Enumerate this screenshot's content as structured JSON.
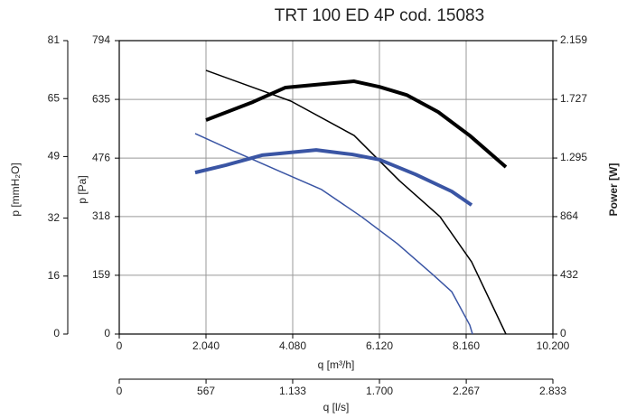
{
  "chart_data": {
    "type": "line",
    "title": "TRT 100 ED 4P cod. 15083",
    "xlabel": "q [m³/h]",
    "x2label": "q [l/s]",
    "ylabel": "p [Pa]",
    "y2label": "Power [W]",
    "y3label": "p [mmH₂O]",
    "xlim": [
      0,
      10200
    ],
    "xticks": [
      0,
      {
        "value": 2040,
        "label": "2.040"
      },
      {
        "value": 4080,
        "label": "4.080"
      },
      {
        "value": 6120,
        "label": "6.120"
      },
      {
        "value": 8160,
        "label": "8.160"
      },
      {
        "value": 10200,
        "label": "10.200"
      }
    ],
    "x2lim": [
      0,
      2833
    ],
    "x2ticks": [
      0,
      567,
      {
        "value": 1133,
        "label": "1.133"
      },
      {
        "value": 1700,
        "label": "1.700"
      },
      {
        "value": 2267,
        "label": "2.267"
      },
      {
        "value": 2833,
        "label": "2.833"
      }
    ],
    "ylim": [
      0,
      794
    ],
    "yticks": [
      0,
      159,
      318,
      476,
      635,
      794
    ],
    "y2lim": [
      0,
      2159
    ],
    "y2ticks": [
      0,
      432,
      864,
      {
        "value": 1295,
        "label": "1.295"
      },
      {
        "value": 1727,
        "label": "1.727"
      },
      {
        "value": 2159,
        "label": "2.159"
      }
    ],
    "y3lim": [
      0,
      81
    ],
    "y3ticks": [
      0,
      16,
      32,
      49,
      65,
      81
    ],
    "grid": true,
    "series": [
      {
        "color": "#000000",
        "width": 4,
        "x": [
          2040,
          3145,
          3910,
          4845,
          5525,
          6120,
          6758,
          7501,
          8245,
          9095
        ],
        "values": [
          579,
          628,
          667,
          677,
          684,
          669,
          647,
          601,
          537,
          452
        ]
      },
      {
        "color": "#000000",
        "width": 1.5,
        "axis": "y2",
        "x": [
          2040,
          4038,
          5525,
          6588,
          7543,
          8288,
          9095
        ],
        "values": [
          1940,
          1714,
          1461,
          1129,
          864,
          531,
          0
        ]
      },
      {
        "color": "#3a55a4",
        "width": 4,
        "x": [
          1785,
          2508,
          3358,
          4633,
          5483,
          6120,
          6970,
          7820,
          8288
        ],
        "values": [
          437,
          457,
          484,
          498,
          486,
          472,
          432,
          386,
          349
        ]
      },
      {
        "color": "#3a55a4",
        "width": 1.5,
        "axis": "y2",
        "x": [
          1785,
          2720,
          3783,
          4760,
          5695,
          6545,
          7395,
          7820,
          8245,
          8309
        ],
        "values": [
          1475,
          1342,
          1196,
          1063,
          864,
          664,
          432,
          312,
          66,
          0
        ]
      }
    ]
  }
}
